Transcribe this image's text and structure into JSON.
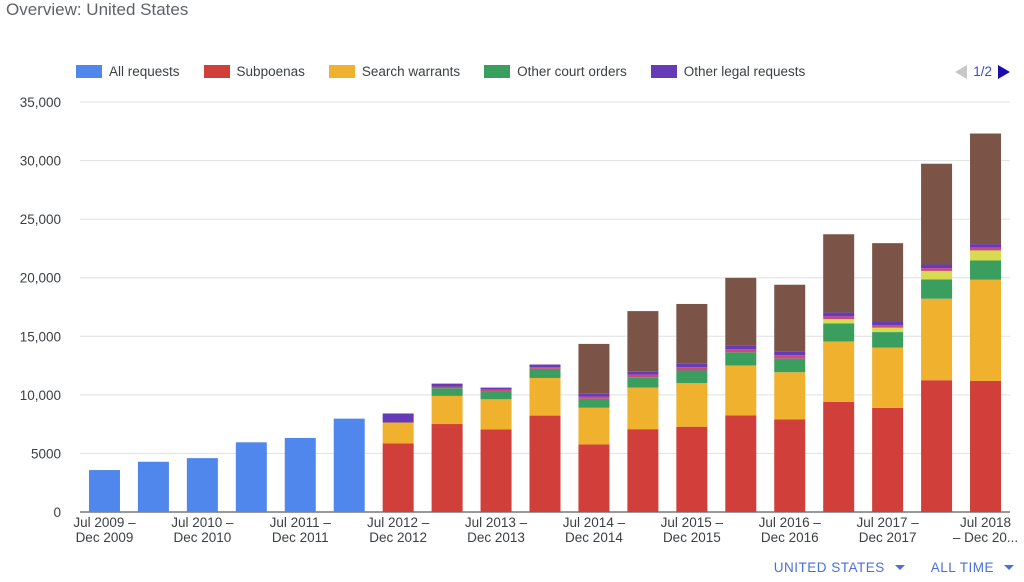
{
  "page": {
    "title": "Overview: United States"
  },
  "pager": {
    "label": "1/2"
  },
  "footer": {
    "country_label": "UNITED STATES",
    "period_label": "ALL TIME"
  },
  "colors": {
    "all": "#5087ec",
    "subpoenas": "#d13f3a",
    "search_warrants": "#f0b12f",
    "other_court_orders": "#3a9e5f",
    "other_legal": "#673ab7",
    "extra_1": "#7b5447",
    "extra_2": "#d8da4f",
    "extra_3": "#c94b7e"
  },
  "chart_data": {
    "type": "bar",
    "stacked": true,
    "ylim": [
      0,
      35000
    ],
    "yticks": [
      "0",
      "5000",
      "10,000",
      "15,000",
      "20,000",
      "25,000",
      "30,000",
      "35,000"
    ],
    "ytick_values": [
      0,
      5000,
      10000,
      15000,
      20000,
      25000,
      30000,
      35000
    ],
    "categories": [
      [
        "Jul 2009 –",
        "Dec 2009"
      ],
      [
        "",
        ""
      ],
      [
        "Jul 2010 –",
        "Dec 2010"
      ],
      [
        "",
        ""
      ],
      [
        "Jul 2011 –",
        "Dec 2011"
      ],
      [
        "",
        ""
      ],
      [
        "Jul 2012 –",
        "Dec 2012"
      ],
      [
        "",
        ""
      ],
      [
        "Jul 2013 –",
        "Dec 2013"
      ],
      [
        "",
        ""
      ],
      [
        "Jul 2014 –",
        "Dec 2014"
      ],
      [
        "",
        ""
      ],
      [
        "Jul 2015 –",
        "Dec 2015"
      ],
      [
        "",
        ""
      ],
      [
        "Jul 2016 –",
        "Dec 2016"
      ],
      [
        "",
        ""
      ],
      [
        "Jul 2017 –",
        "Dec 2017"
      ],
      [
        "",
        ""
      ],
      [
        "Jul 2018",
        "– Dec 20..."
      ]
    ],
    "legend": [
      {
        "name": "All requests",
        "color_key": "all"
      },
      {
        "name": "Subpoenas",
        "color_key": "subpoenas"
      },
      {
        "name": "Search warrants",
        "color_key": "search_warrants"
      },
      {
        "name": "Other court orders",
        "color_key": "other_court_orders"
      },
      {
        "name": "Other legal requests",
        "color_key": "other_legal"
      }
    ],
    "series": [
      {
        "name": "All requests",
        "color_key": "all",
        "values": [
          3580,
          4290,
          4600,
          5950,
          6320,
          7970,
          0,
          0,
          0,
          0,
          0,
          0,
          0,
          0,
          0,
          0,
          0,
          0,
          0
        ]
      },
      {
        "name": "Subpoenas",
        "color_key": "subpoenas",
        "values": [
          0,
          0,
          0,
          0,
          0,
          0,
          5860,
          7510,
          7060,
          8230,
          5770,
          7070,
          7280,
          8240,
          7910,
          9410,
          8890,
          11250,
          11200
        ]
      },
      {
        "name": "Search warrants",
        "color_key": "search_warrants",
        "values": [
          0,
          0,
          0,
          0,
          0,
          0,
          1780,
          2400,
          2560,
          3210,
          3130,
          3560,
          3720,
          4270,
          4020,
          5150,
          5150,
          6960,
          8630
        ]
      },
      {
        "name": "Other court orders",
        "color_key": "other_court_orders",
        "values": [
          0,
          0,
          0,
          0,
          0,
          0,
          0,
          660,
          670,
          780,
          760,
          870,
          1080,
          1120,
          1160,
          1530,
          1320,
          1650,
          1640
        ]
      },
      {
        "name": "",
        "color_key": "extra_2",
        "values": [
          0,
          0,
          0,
          0,
          0,
          0,
          0,
          0,
          0,
          0,
          0,
          0,
          0,
          0,
          0,
          370,
          380,
          720,
          860
        ]
      },
      {
        "name": "",
        "color_key": "extra_3",
        "values": [
          0,
          0,
          0,
          0,
          0,
          0,
          0,
          140,
          150,
          150,
          190,
          230,
          280,
          280,
          290,
          240,
          200,
          240,
          230
        ]
      },
      {
        "name": "Other legal requests",
        "color_key": "other_legal",
        "values": [
          0,
          0,
          0,
          0,
          0,
          0,
          770,
          250,
          180,
          220,
          240,
          240,
          300,
          330,
          310,
          340,
          320,
          310,
          310
        ]
      },
      {
        "name": "",
        "color_key": "extra_1",
        "values": [
          0,
          0,
          0,
          0,
          0,
          0,
          0,
          0,
          0,
          0,
          4260,
          5180,
          5100,
          5750,
          5710,
          6670,
          6690,
          8600,
          9440
        ]
      }
    ],
    "grid": true
  }
}
